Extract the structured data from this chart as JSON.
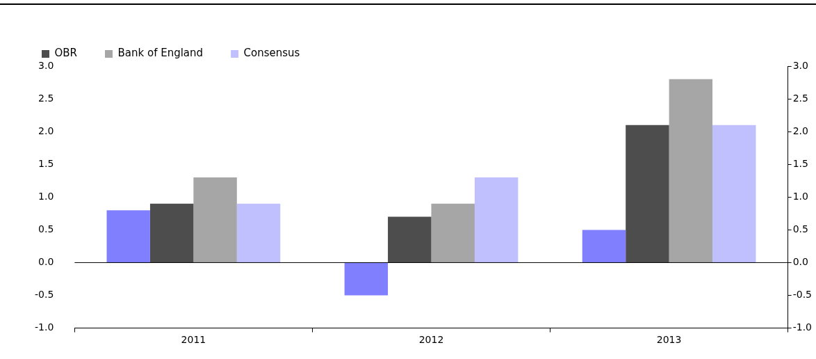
{
  "chart_data": {
    "type": "bar",
    "categories": [
      "2011",
      "2012",
      "2013"
    ],
    "series": [
      {
        "color": "#8080ff",
        "values": [
          0.8,
          -0.5,
          0.5
        ]
      },
      {
        "name": "OBR",
        "color": "#4d4d4d",
        "values": [
          0.9,
          0.7,
          2.1
        ]
      },
      {
        "name": "Bank of England",
        "color": "#a6a6a6",
        "values": [
          1.3,
          0.9,
          2.8
        ]
      },
      {
        "name": "Consensus",
        "color": "#c0c0ff",
        "values": [
          0.9,
          1.3,
          2.1
        ]
      }
    ],
    "ylim": [
      -1,
      3
    ],
    "yticks": [
      {
        "value": -1,
        "label": "-1.0"
      },
      {
        "value": -0.5,
        "label": "-0.5"
      },
      {
        "value": 0,
        "label": "0.0"
      },
      {
        "value": 0.5,
        "label": "0.5"
      },
      {
        "value": 1,
        "label": "1.0"
      },
      {
        "value": 1.5,
        "label": "1.5"
      },
      {
        "value": 2,
        "label": "2.0"
      },
      {
        "value": 2.5,
        "label": "2.5"
      },
      {
        "value": 3,
        "label": "3.0"
      }
    ],
    "y2lim": [
      -1,
      3
    ],
    "y2ticks": [
      {
        "value": -1,
        "label": "-1.0"
      },
      {
        "value": -0.5,
        "label": "-0.5"
      },
      {
        "value": 0,
        "label": "0.0"
      },
      {
        "value": 0.5,
        "label": "0.5"
      },
      {
        "value": 1,
        "label": "1.0"
      },
      {
        "value": 1.5,
        "label": "1.5"
      },
      {
        "value": 2,
        "label": "2.0"
      },
      {
        "value": 2.5,
        "label": "2.5"
      },
      {
        "value": 3,
        "label": "3.0"
      }
    ],
    "legend": "top left"
  }
}
